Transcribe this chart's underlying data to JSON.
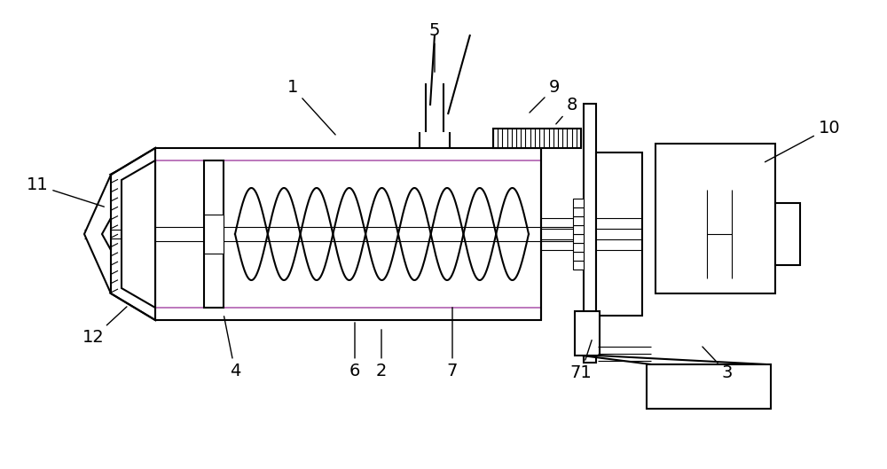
{
  "bg_color": "#ffffff",
  "line_color": "#000000",
  "purple_color": "#b060b0",
  "line_width": 1.5,
  "thin_lw": 0.8,
  "figsize": [
    10.0,
    5.29
  ],
  "dpi": 100
}
